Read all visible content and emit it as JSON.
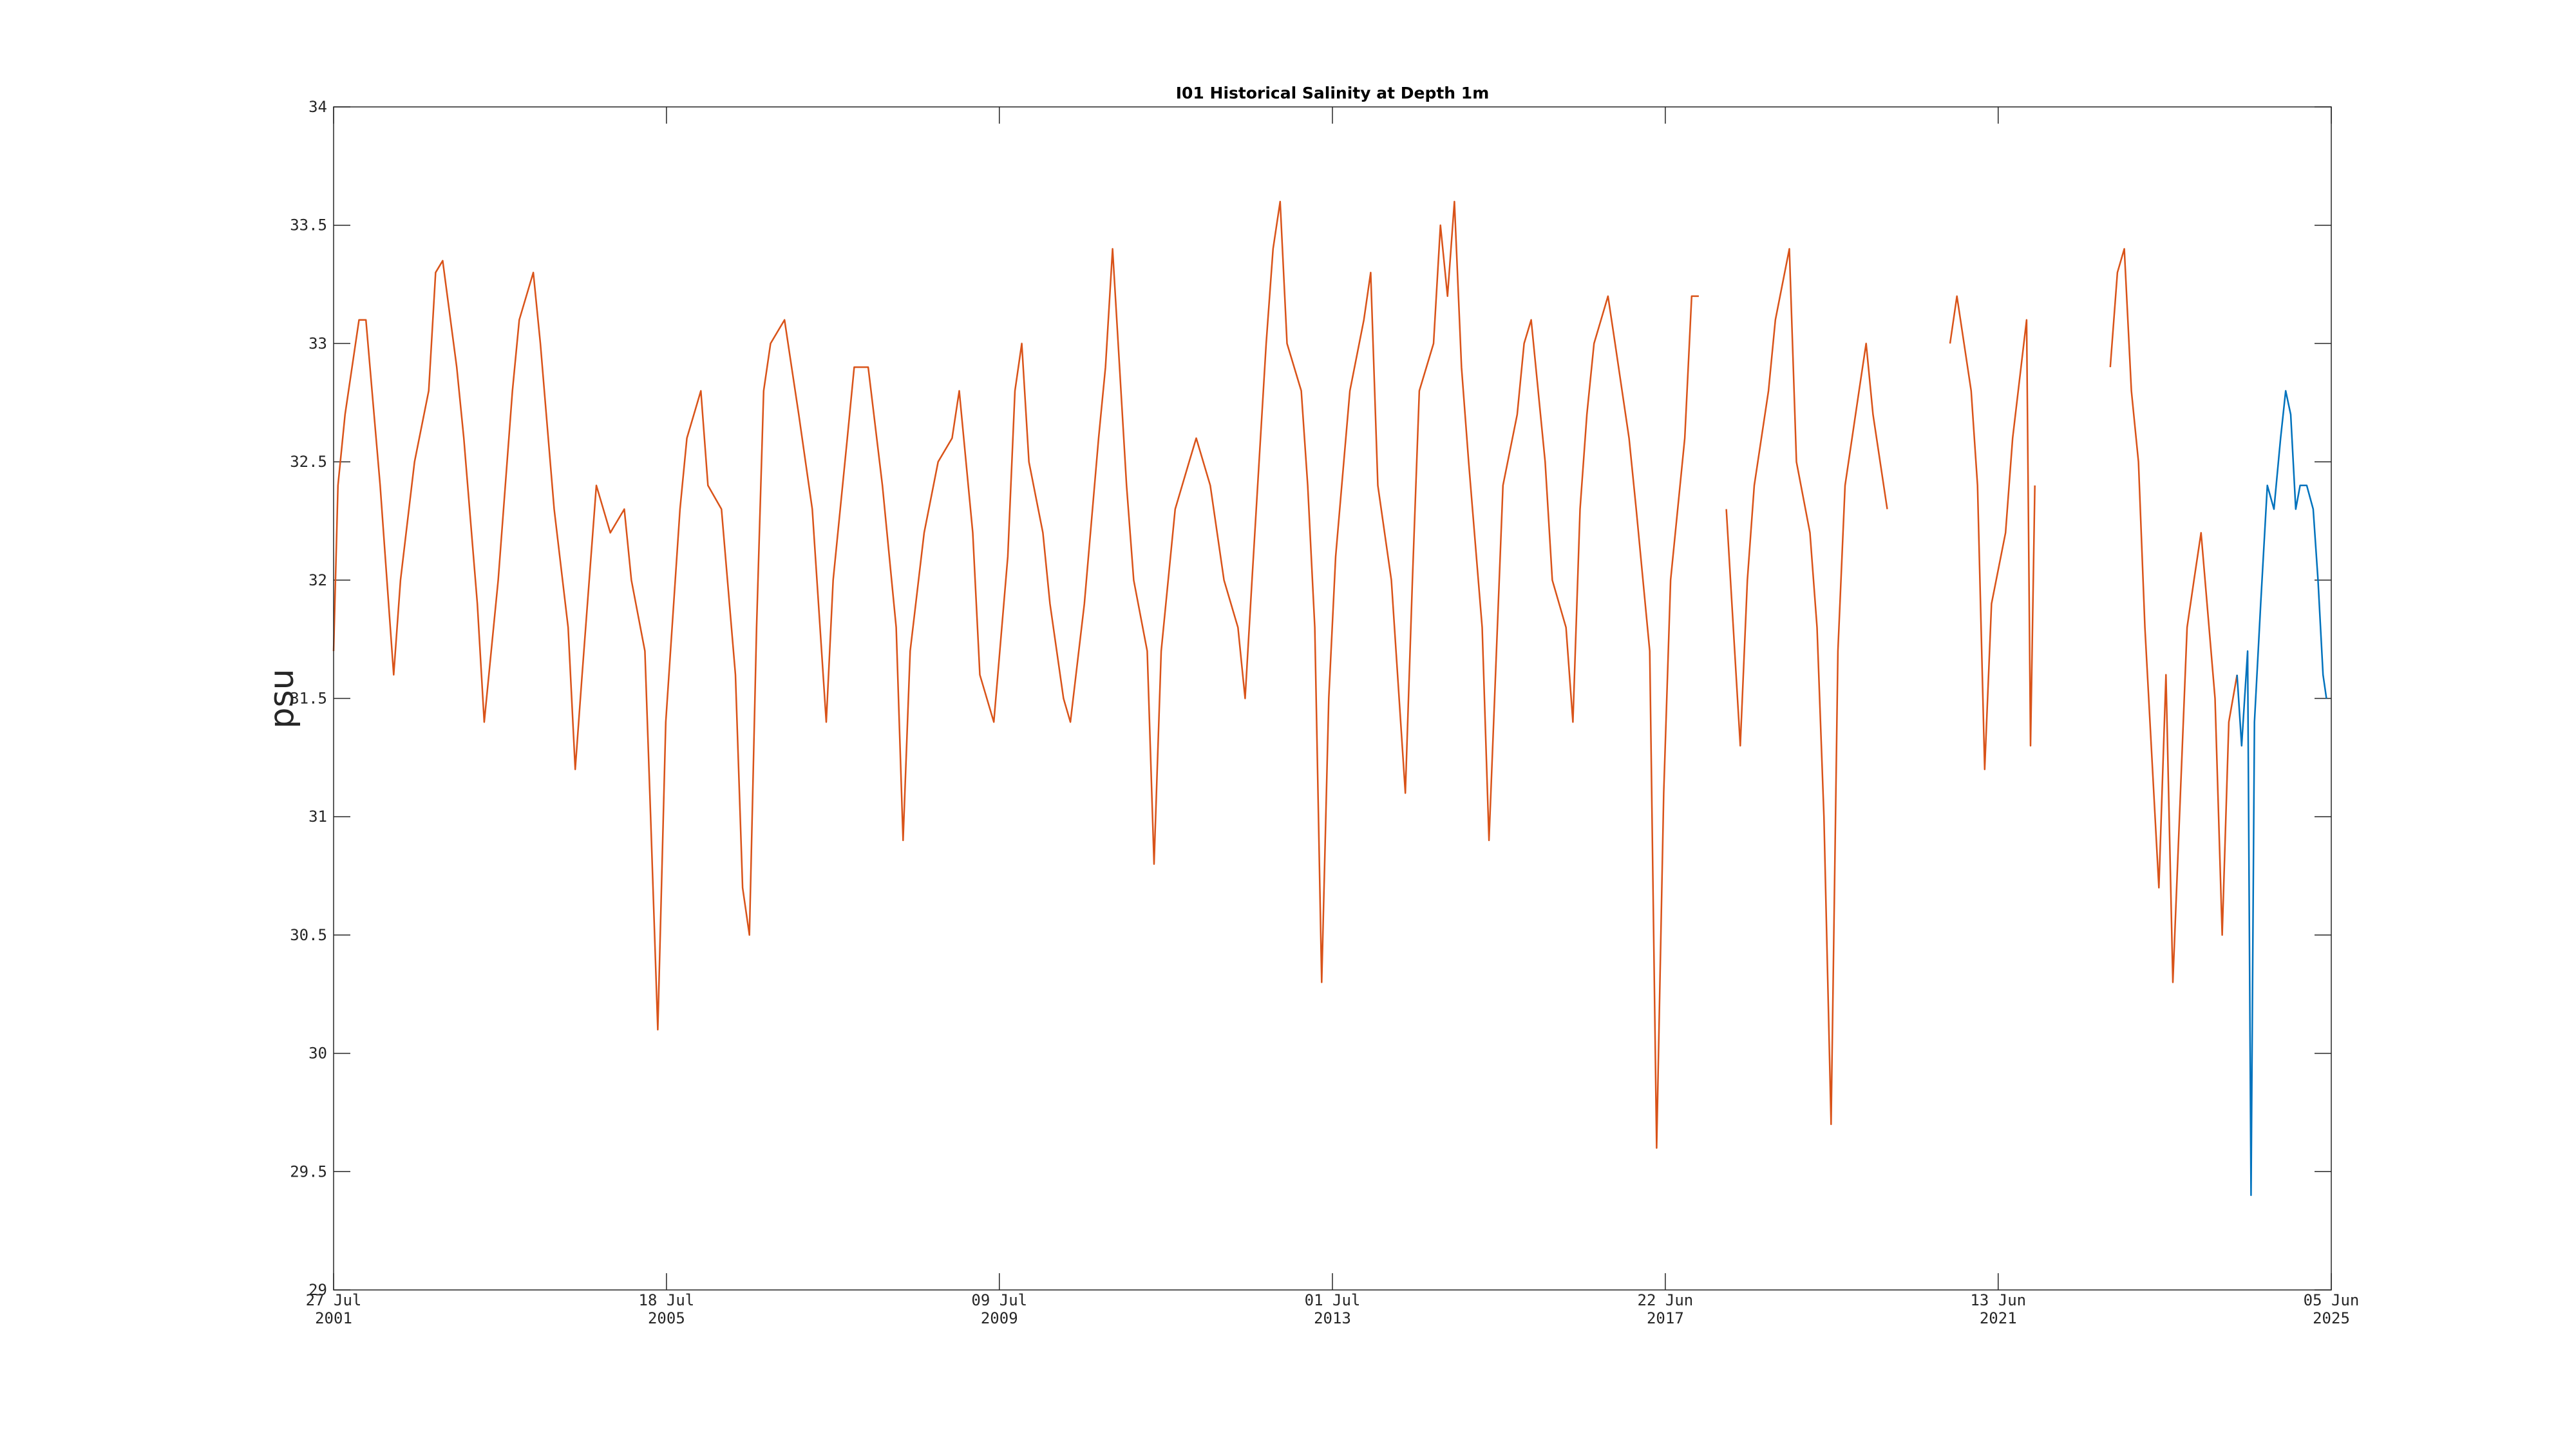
{
  "chart_data": {
    "type": "line",
    "title": "I01 Historical Salinity at Depth 1m",
    "y_label": "psu",
    "ylim": [
      29,
      34
    ],
    "yticks": [
      29,
      29.5,
      30,
      30.5,
      31,
      31.5,
      32,
      32.5,
      33,
      33.5,
      34
    ],
    "xlim": [
      "2001-07-27",
      "2025-06-05"
    ],
    "xticks": [
      {
        "value": "2001-07-27",
        "label": [
          "27 Jul",
          "2001"
        ]
      },
      {
        "value": "2005-07-18",
        "label": [
          "18 Jul",
          "2005"
        ]
      },
      {
        "value": "2009-07-09",
        "label": [
          "09 Jul",
          "2009"
        ]
      },
      {
        "value": "2013-07-01",
        "label": [
          "01 Jul",
          "2013"
        ]
      },
      {
        "value": "2017-06-22",
        "label": [
          "22 Jun",
          "2017"
        ]
      },
      {
        "value": "2021-06-13",
        "label": [
          "13 Jun",
          "2021"
        ]
      },
      {
        "value": "2025-06-05",
        "label": [
          "05 Jun",
          "2025"
        ]
      }
    ],
    "grid": false,
    "series": [
      {
        "color": "#d95319",
        "x": [
          "2001-07-27",
          "2001-08-15",
          "2001-09-15",
          "2001-11-15",
          "2001-12-15",
          "2002-02-15",
          "2002-04-15",
          "2002-05-15",
          "2002-07-15",
          "2002-09-15",
          "2002-10-15",
          "2002-11-15",
          "2003-01-15",
          "2003-02-15",
          "2003-04-15",
          "2003-05-15",
          "2003-07-15",
          "2003-09-15",
          "2003-10-15",
          "2003-12-15",
          "2004-01-15",
          "2004-03-15",
          "2004-05-15",
          "2004-06-15",
          "2004-07-15",
          "2004-09-15",
          "2004-11-15",
          "2005-01-15",
          "2005-02-15",
          "2005-04-15",
          "2005-05-10",
          "2005-06-10",
          "2005-07-15",
          "2005-09-15",
          "2005-10-15",
          "2005-12-15",
          "2006-01-15",
          "2006-03-15",
          "2006-05-15",
          "2006-06-15",
          "2006-07-15",
          "2006-08-15",
          "2006-09-15",
          "2006-10-15",
          "2006-12-15",
          "2007-01-15",
          "2007-02-15",
          "2007-04-15",
          "2007-06-15",
          "2007-07-15",
          "2007-09-15",
          "2007-10-15",
          "2007-12-15",
          "2008-02-15",
          "2008-04-15",
          "2008-05-15",
          "2008-06-15",
          "2008-08-15",
          "2008-10-15",
          "2008-12-15",
          "2009-01-15",
          "2009-03-15",
          "2009-04-15",
          "2009-06-15",
          "2009-08-15",
          "2009-09-15",
          "2009-10-15",
          "2009-11-15",
          "2010-01-15",
          "2010-02-15",
          "2010-04-15",
          "2010-05-15",
          "2010-07-15",
          "2010-09-15",
          "2010-10-15",
          "2010-11-15",
          "2011-01-15",
          "2011-02-15",
          "2011-04-15",
          "2011-05-15",
          "2011-06-15",
          "2011-08-15",
          "2011-10-15",
          "2011-11-15",
          "2012-01-15",
          "2012-03-15",
          "2012-05-15",
          "2012-06-15",
          "2012-07-15",
          "2012-09-15",
          "2012-10-15",
          "2012-11-15",
          "2012-12-15",
          "2013-02-15",
          "2013-03-15",
          "2013-04-15",
          "2013-05-15",
          "2013-06-15",
          "2013-07-15",
          "2013-09-15",
          "2013-11-15",
          "2013-12-15",
          "2014-01-15",
          "2014-03-15",
          "2014-05-15",
          "2014-06-15",
          "2014-07-15",
          "2014-09-15",
          "2014-10-15",
          "2014-11-15",
          "2014-12-15",
          "2015-01-15",
          "2015-02-15",
          "2015-04-15",
          "2015-05-15",
          "2015-07-15",
          "2015-09-15",
          "2015-10-15",
          "2015-11-15",
          "2016-01-15",
          "2016-02-15",
          "2016-04-15",
          "2016-05-15",
          "2016-06-15",
          "2016-07-15",
          "2016-08-15",
          "2016-10-15",
          "2016-11-15",
          "2017-01-15",
          "2017-02-15",
          "2017-04-15",
          "2017-05-15",
          "2017-06-15",
          "2017-07-15",
          "2017-09-15",
          "2017-10-15",
          "2017-11-15",
          "2018-01-15",
          "2018-03-15",
          "2018-05-15",
          "2018-06-15",
          "2018-07-15",
          "2018-09-15",
          "2018-10-15",
          "2018-12-15",
          "2019-01-15",
          "2019-03-15",
          "2019-04-15",
          "2019-05-15",
          "2019-06-15",
          "2019-07-15",
          "2019-08-15",
          "2019-10-15",
          "2019-11-15",
          "2019-12-15",
          "2020-02-15",
          "2020-06-15",
          "2020-11-15",
          "2020-12-15",
          "2021-02-15",
          "2021-03-15",
          "2021-04-15",
          "2021-05-15",
          "2021-07-15",
          "2021-08-15",
          "2021-10-15",
          "2021-11-01",
          "2021-11-20",
          "2022-05-15",
          "2022-10-15",
          "2022-11-15",
          "2022-12-15",
          "2023-01-15",
          "2023-02-15",
          "2023-03-15",
          "2023-05-15",
          "2023-06-15",
          "2023-07-15",
          "2023-09-15",
          "2023-10-15",
          "2023-11-15",
          "2024-01-15",
          "2024-02-15",
          "2024-03-15",
          "2024-04-20"
        ],
        "values": [
          31.7,
          32.4,
          32.7,
          33.1,
          33.1,
          32.4,
          31.6,
          32.0,
          32.5,
          32.8,
          33.3,
          33.35,
          32.9,
          32.6,
          31.9,
          31.4,
          32.0,
          32.8,
          33.1,
          33.3,
          33.0,
          32.3,
          31.8,
          31.2,
          31.6,
          32.4,
          32.2,
          32.3,
          32.0,
          31.7,
          31.0,
          30.1,
          31.4,
          32.3,
          32.6,
          32.8,
          32.4,
          32.3,
          31.6,
          30.7,
          30.5,
          31.8,
          32.8,
          33.0,
          33.1,
          32.9,
          32.7,
          32.3,
          31.4,
          32.0,
          32.6,
          32.9,
          32.9,
          32.4,
          31.8,
          30.9,
          31.7,
          32.2,
          32.5,
          32.6,
          32.8,
          32.2,
          31.6,
          31.4,
          32.1,
          32.8,
          33.0,
          32.5,
          32.2,
          31.9,
          31.5,
          31.4,
          31.9,
          32.6,
          32.9,
          33.4,
          32.4,
          32.0,
          31.7,
          30.8,
          31.7,
          32.3,
          32.5,
          32.6,
          32.4,
          32.0,
          31.8,
          31.5,
          32.0,
          33.0,
          33.4,
          33.6,
          33.0,
          32.8,
          32.4,
          31.8,
          30.3,
          31.5,
          32.1,
          32.8,
          33.1,
          33.3,
          32.4,
          32.0,
          31.1,
          32.0,
          32.8,
          33.0,
          33.5,
          33.2,
          33.6,
          32.9,
          32.5,
          31.8,
          30.9,
          32.4,
          32.7,
          33.0,
          33.1,
          32.5,
          32.0,
          31.8,
          31.4,
          32.3,
          32.7,
          33.0,
          33.2,
          33.0,
          32.6,
          32.3,
          31.7,
          29.6,
          31.1,
          32.0,
          32.6,
          33.2,
          33.2,
          null,
          32.3,
          31.3,
          32.0,
          32.4,
          32.8,
          33.1,
          33.4,
          32.5,
          32.2,
          31.8,
          31.0,
          29.7,
          31.7,
          32.4,
          32.8,
          33.0,
          32.7,
          32.3,
          null,
          33.0,
          33.2,
          32.8,
          32.4,
          31.2,
          31.9,
          32.2,
          32.6,
          33.1,
          31.3,
          32.4,
          null,
          32.9,
          33.3,
          33.4,
          32.8,
          32.5,
          31.8,
          30.7,
          31.6,
          30.3,
          31.8,
          32.0,
          32.2,
          31.5,
          30.5,
          31.4,
          31.6
        ]
      },
      {
        "color": "#0072bd",
        "x": [
          "2024-04-20",
          "2024-05-10",
          "2024-06-05",
          "2024-06-20",
          "2024-07-05",
          "2024-08-01",
          "2024-08-30",
          "2024-09-28",
          "2024-10-27",
          "2024-11-18",
          "2024-12-10",
          "2025-01-01",
          "2025-01-20",
          "2025-02-18",
          "2025-03-18",
          "2025-04-08",
          "2025-04-30",
          "2025-05-15"
        ],
        "values": [
          31.6,
          31.3,
          31.7,
          29.4,
          31.4,
          31.9,
          32.4,
          32.3,
          32.6,
          32.8,
          32.7,
          32.3,
          32.4,
          32.4,
          32.3,
          32.0,
          31.6,
          31.5
        ]
      }
    ]
  }
}
